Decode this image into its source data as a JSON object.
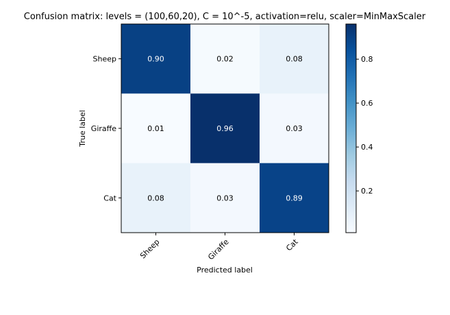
{
  "chart_data": {
    "type": "heatmap",
    "title": "Confusion matrix: levels = (100,60,20), C = 10^-5, activation=relu, scaler=MinMaxScaler",
    "xlabel": "Predicted label",
    "ylabel": "True label",
    "x_categories": [
      "Sheep",
      "Giraffe",
      "Cat"
    ],
    "y_categories": [
      "Sheep",
      "Giraffe",
      "Cat"
    ],
    "values": [
      [
        0.9,
        0.02,
        0.08
      ],
      [
        0.01,
        0.96,
        0.03
      ],
      [
        0.08,
        0.03,
        0.89
      ]
    ],
    "cell_labels": [
      [
        "0.90",
        "0.02",
        "0.08"
      ],
      [
        "0.01",
        "0.96",
        "0.03"
      ],
      [
        "0.08",
        "0.03",
        "0.89"
      ]
    ],
    "colormap": "Blues",
    "colorbar": {
      "range": [
        0.01,
        0.96
      ],
      "ticks": [
        0.2,
        0.4,
        0.6,
        0.8
      ],
      "tick_labels": [
        "0.2",
        "0.4",
        "0.6",
        "0.8"
      ]
    }
  }
}
